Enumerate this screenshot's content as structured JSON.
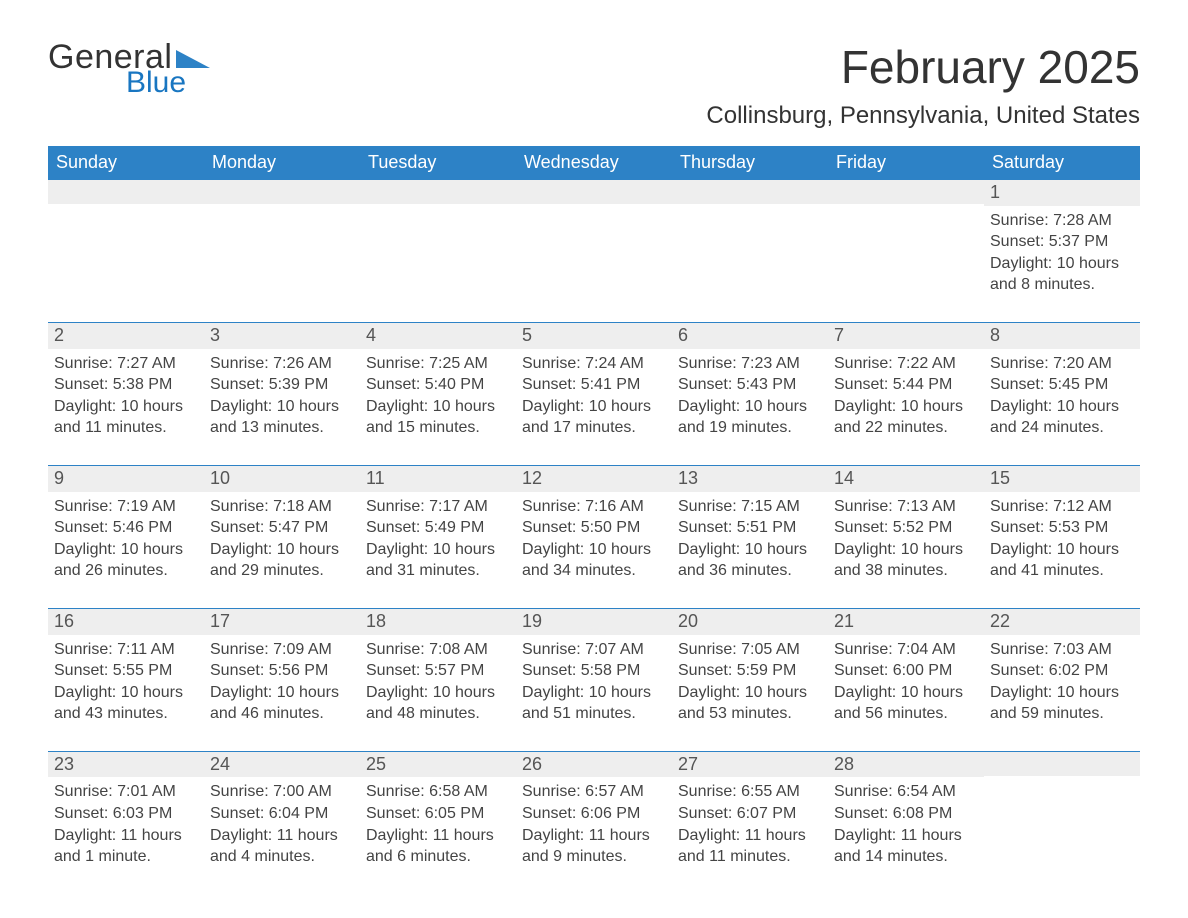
{
  "brand": {
    "word1": "General",
    "word2": "Blue",
    "tri_color": "#2d82c6"
  },
  "title": "February 2025",
  "location": "Collinsburg, Pennsylvania, United States",
  "colors": {
    "header_bg": "#2d82c6",
    "header_text": "#ffffff",
    "daynum_bg": "#eeeeee",
    "row_divider": "#2d82c6",
    "text": "#333333"
  },
  "columns": [
    "Sunday",
    "Monday",
    "Tuesday",
    "Wednesday",
    "Thursday",
    "Friday",
    "Saturday"
  ],
  "weeks": [
    [
      null,
      null,
      null,
      null,
      null,
      null,
      {
        "n": "1",
        "sunrise": "Sunrise: 7:28 AM",
        "sunset": "Sunset: 5:37 PM",
        "daylight": "Daylight: 10 hours and 8 minutes."
      }
    ],
    [
      {
        "n": "2",
        "sunrise": "Sunrise: 7:27 AM",
        "sunset": "Sunset: 5:38 PM",
        "daylight": "Daylight: 10 hours and 11 minutes."
      },
      {
        "n": "3",
        "sunrise": "Sunrise: 7:26 AM",
        "sunset": "Sunset: 5:39 PM",
        "daylight": "Daylight: 10 hours and 13 minutes."
      },
      {
        "n": "4",
        "sunrise": "Sunrise: 7:25 AM",
        "sunset": "Sunset: 5:40 PM",
        "daylight": "Daylight: 10 hours and 15 minutes."
      },
      {
        "n": "5",
        "sunrise": "Sunrise: 7:24 AM",
        "sunset": "Sunset: 5:41 PM",
        "daylight": "Daylight: 10 hours and 17 minutes."
      },
      {
        "n": "6",
        "sunrise": "Sunrise: 7:23 AM",
        "sunset": "Sunset: 5:43 PM",
        "daylight": "Daylight: 10 hours and 19 minutes."
      },
      {
        "n": "7",
        "sunrise": "Sunrise: 7:22 AM",
        "sunset": "Sunset: 5:44 PM",
        "daylight": "Daylight: 10 hours and 22 minutes."
      },
      {
        "n": "8",
        "sunrise": "Sunrise: 7:20 AM",
        "sunset": "Sunset: 5:45 PM",
        "daylight": "Daylight: 10 hours and 24 minutes."
      }
    ],
    [
      {
        "n": "9",
        "sunrise": "Sunrise: 7:19 AM",
        "sunset": "Sunset: 5:46 PM",
        "daylight": "Daylight: 10 hours and 26 minutes."
      },
      {
        "n": "10",
        "sunrise": "Sunrise: 7:18 AM",
        "sunset": "Sunset: 5:47 PM",
        "daylight": "Daylight: 10 hours and 29 minutes."
      },
      {
        "n": "11",
        "sunrise": "Sunrise: 7:17 AM",
        "sunset": "Sunset: 5:49 PM",
        "daylight": "Daylight: 10 hours and 31 minutes."
      },
      {
        "n": "12",
        "sunrise": "Sunrise: 7:16 AM",
        "sunset": "Sunset: 5:50 PM",
        "daylight": "Daylight: 10 hours and 34 minutes."
      },
      {
        "n": "13",
        "sunrise": "Sunrise: 7:15 AM",
        "sunset": "Sunset: 5:51 PM",
        "daylight": "Daylight: 10 hours and 36 minutes."
      },
      {
        "n": "14",
        "sunrise": "Sunrise: 7:13 AM",
        "sunset": "Sunset: 5:52 PM",
        "daylight": "Daylight: 10 hours and 38 minutes."
      },
      {
        "n": "15",
        "sunrise": "Sunrise: 7:12 AM",
        "sunset": "Sunset: 5:53 PM",
        "daylight": "Daylight: 10 hours and 41 minutes."
      }
    ],
    [
      {
        "n": "16",
        "sunrise": "Sunrise: 7:11 AM",
        "sunset": "Sunset: 5:55 PM",
        "daylight": "Daylight: 10 hours and 43 minutes."
      },
      {
        "n": "17",
        "sunrise": "Sunrise: 7:09 AM",
        "sunset": "Sunset: 5:56 PM",
        "daylight": "Daylight: 10 hours and 46 minutes."
      },
      {
        "n": "18",
        "sunrise": "Sunrise: 7:08 AM",
        "sunset": "Sunset: 5:57 PM",
        "daylight": "Daylight: 10 hours and 48 minutes."
      },
      {
        "n": "19",
        "sunrise": "Sunrise: 7:07 AM",
        "sunset": "Sunset: 5:58 PM",
        "daylight": "Daylight: 10 hours and 51 minutes."
      },
      {
        "n": "20",
        "sunrise": "Sunrise: 7:05 AM",
        "sunset": "Sunset: 5:59 PM",
        "daylight": "Daylight: 10 hours and 53 minutes."
      },
      {
        "n": "21",
        "sunrise": "Sunrise: 7:04 AM",
        "sunset": "Sunset: 6:00 PM",
        "daylight": "Daylight: 10 hours and 56 minutes."
      },
      {
        "n": "22",
        "sunrise": "Sunrise: 7:03 AM",
        "sunset": "Sunset: 6:02 PM",
        "daylight": "Daylight: 10 hours and 59 minutes."
      }
    ],
    [
      {
        "n": "23",
        "sunrise": "Sunrise: 7:01 AM",
        "sunset": "Sunset: 6:03 PM",
        "daylight": "Daylight: 11 hours and 1 minute."
      },
      {
        "n": "24",
        "sunrise": "Sunrise: 7:00 AM",
        "sunset": "Sunset: 6:04 PM",
        "daylight": "Daylight: 11 hours and 4 minutes."
      },
      {
        "n": "25",
        "sunrise": "Sunrise: 6:58 AM",
        "sunset": "Sunset: 6:05 PM",
        "daylight": "Daylight: 11 hours and 6 minutes."
      },
      {
        "n": "26",
        "sunrise": "Sunrise: 6:57 AM",
        "sunset": "Sunset: 6:06 PM",
        "daylight": "Daylight: 11 hours and 9 minutes."
      },
      {
        "n": "27",
        "sunrise": "Sunrise: 6:55 AM",
        "sunset": "Sunset: 6:07 PM",
        "daylight": "Daylight: 11 hours and 11 minutes."
      },
      {
        "n": "28",
        "sunrise": "Sunrise: 6:54 AM",
        "sunset": "Sunset: 6:08 PM",
        "daylight": "Daylight: 11 hours and 14 minutes."
      },
      null
    ]
  ]
}
